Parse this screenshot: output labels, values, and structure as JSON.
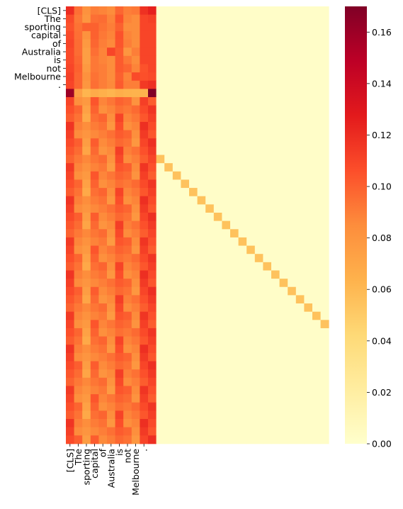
{
  "chart_data": {
    "type": "heatmap",
    "title": "",
    "xlabel": "",
    "ylabel": "",
    "row_labels": [
      "[CLS]",
      "The",
      "sporting",
      "capital",
      "of",
      "Australia",
      "is",
      "not",
      "Melbourne",
      "."
    ],
    "col_labels": [
      "[CLS]",
      "The",
      "sporting",
      "capital",
      "of",
      "Australia",
      "is",
      "not",
      "Melbourne",
      "."
    ],
    "n_rows": 53,
    "n_cols": 32,
    "colormap": "YlOrRd",
    "vmin": 0.0,
    "vmax": 0.17,
    "colorbar_ticks": [
      "0.00",
      "0.02",
      "0.04",
      "0.06",
      "0.08",
      "0.10",
      "0.12",
      "0.14",
      "0.16"
    ],
    "colorbar_tick_values": [
      0.0,
      0.02,
      0.04,
      0.06,
      0.08,
      0.1,
      0.12,
      0.14,
      0.16
    ],
    "annotated_rows": [
      [
        0.12,
        0.095,
        0.082,
        0.09,
        0.088,
        0.085,
        0.098,
        0.09,
        0.092,
        0.118,
        0.125
      ],
      [
        0.108,
        0.092,
        0.08,
        0.095,
        0.096,
        0.088,
        0.105,
        0.088,
        0.085,
        0.11,
        0.112
      ],
      [
        0.105,
        0.094,
        0.1,
        0.1,
        0.094,
        0.09,
        0.1,
        0.085,
        0.085,
        0.11,
        0.11
      ],
      [
        0.108,
        0.095,
        0.082,
        0.1,
        0.092,
        0.088,
        0.105,
        0.088,
        0.085,
        0.11,
        0.11
      ],
      [
        0.11,
        0.096,
        0.078,
        0.098,
        0.09,
        0.086,
        0.104,
        0.09,
        0.085,
        0.11,
        0.11
      ],
      [
        0.108,
        0.096,
        0.075,
        0.095,
        0.088,
        0.11,
        0.102,
        0.08,
        0.09,
        0.11,
        0.11
      ],
      [
        0.108,
        0.098,
        0.075,
        0.092,
        0.088,
        0.085,
        0.102,
        0.092,
        0.085,
        0.11,
        0.11
      ],
      [
        0.11,
        0.1,
        0.078,
        0.092,
        0.09,
        0.085,
        0.102,
        0.098,
        0.088,
        0.105,
        0.11
      ],
      [
        0.112,
        0.098,
        0.082,
        0.094,
        0.09,
        0.085,
        0.1,
        0.088,
        0.108,
        0.106,
        0.108
      ],
      [
        0.11,
        0.098,
        0.08,
        0.095,
        0.09,
        0.086,
        0.102,
        0.09,
        0.09,
        0.115,
        0.118
      ]
    ],
    "special_row": [
      0.16,
      0.075,
      0.062,
      0.068,
      0.065,
      0.062,
      0.066,
      0.064,
      0.063,
      0.063,
      0.17
    ],
    "diagonal_value": 0.055,
    "background_value": 0.002,
    "lower_band_pattern": [
      0.108,
      0.092,
      0.078,
      0.095,
      0.09,
      0.086,
      0.104,
      0.092,
      0.088,
      0.11,
      0.11
    ],
    "colorbar_description": "continuous YlOrRd scale from 0.00 (pale yellow) to about 0.17 (dark red)"
  }
}
